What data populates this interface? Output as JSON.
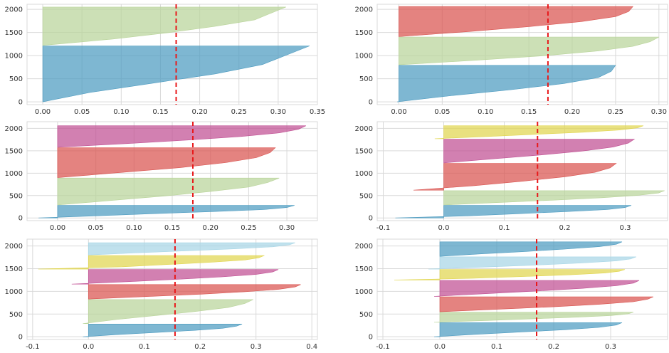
{
  "colors": {
    "c_blue": "#4c9bc0",
    "c_green": "#b9d49a",
    "c_red": "#d9534f",
    "c_purple": "#c04f93",
    "c_yellow": "#e1d64f",
    "c_cyan": "#a7d6e6",
    "avg_line": "#e8191b",
    "grid": "#d9d9d9",
    "plot_bg": "#ffffff"
  },
  "chart_data": [
    {
      "type": "silhouette",
      "n_clusters": 2,
      "average_score": 0.17,
      "xlim": [
        -0.02,
        0.35
      ],
      "ylim": [
        -60,
        2110
      ],
      "x_ticks": [
        0.0,
        0.05,
        0.1,
        0.15,
        0.2,
        0.25,
        0.3,
        0.35
      ],
      "x_tick_labels": [
        "0.00",
        "0.05",
        "0.10",
        "0.15",
        "0.20",
        "0.25",
        "0.30",
        "0.35"
      ],
      "y_ticks": [
        0,
        500,
        1000,
        1500,
        2000
      ],
      "y_tick_labels": [
        "0",
        "500",
        "1000",
        "1500",
        "2000"
      ],
      "clusters": [
        {
          "y_start": 0,
          "y_end": 1210,
          "profile": [
            0.0,
            0.06,
            0.14,
            0.22,
            0.28,
            0.31,
            0.34
          ],
          "color": "c_blue"
        },
        {
          "y_start": 1220,
          "y_end": 2050,
          "profile": [
            0.0,
            0.09,
            0.16,
            0.22,
            0.27,
            0.29,
            0.31
          ],
          "color": "c_green"
        }
      ]
    },
    {
      "type": "silhouette",
      "n_clusters": 3,
      "average_score": 0.172,
      "xlim": [
        -0.025,
        0.31
      ],
      "ylim": [
        -60,
        2110
      ],
      "x_ticks": [
        0.0,
        0.05,
        0.1,
        0.15,
        0.2,
        0.25,
        0.3
      ],
      "x_tick_labels": [
        "0.00",
        "0.05",
        "0.10",
        "0.15",
        "0.20",
        "0.25",
        "0.30"
      ],
      "y_ticks": [
        0,
        500,
        1000,
        1500,
        2000
      ],
      "y_tick_labels": [
        "0",
        "500",
        "1000",
        "1500",
        "2000"
      ],
      "clusters": [
        {
          "y_start": 0,
          "y_end": 790,
          "profile": [
            -0.002,
            0.06,
            0.13,
            0.19,
            0.23,
            0.245,
            0.25
          ],
          "color": "c_blue"
        },
        {
          "y_start": 800,
          "y_end": 1400,
          "profile": [
            0.0,
            0.09,
            0.17,
            0.23,
            0.27,
            0.29,
            0.3
          ],
          "color": "c_green"
        },
        {
          "y_start": 1410,
          "y_end": 2060,
          "profile": [
            0.0,
            0.08,
            0.15,
            0.21,
            0.25,
            0.265,
            0.27
          ],
          "color": "c_red"
        }
      ]
    },
    {
      "type": "silhouette",
      "n_clusters": 4,
      "average_score": 0.177,
      "xlim": [
        -0.04,
        0.34
      ],
      "ylim": [
        -60,
        2150
      ],
      "x_ticks": [
        0.0,
        0.05,
        0.1,
        0.15,
        0.2,
        0.25,
        0.3
      ],
      "x_tick_labels": [
        "0.00",
        "0.05",
        "0.10",
        "0.15",
        "0.20",
        "0.25",
        "0.30"
      ],
      "y_ticks": [
        0,
        500,
        1000,
        1500,
        2000
      ],
      "y_tick_labels": [
        "0",
        "500",
        "1000",
        "1500",
        "2000"
      ],
      "clusters": [
        {
          "y_start": 0,
          "y_end": 280,
          "profile": [
            -0.025,
            0.05,
            0.12,
            0.2,
            0.27,
            0.3,
            0.31
          ],
          "color": "c_blue"
        },
        {
          "y_start": 290,
          "y_end": 890,
          "profile": [
            0.0,
            0.07,
            0.14,
            0.2,
            0.25,
            0.275,
            0.29
          ],
          "color": "c_green"
        },
        {
          "y_start": 900,
          "y_end": 1570,
          "profile": [
            0.0,
            0.08,
            0.16,
            0.22,
            0.26,
            0.278,
            0.285
          ],
          "color": "c_red"
        },
        {
          "y_start": 1580,
          "y_end": 2060,
          "profile": [
            0.0,
            0.09,
            0.17,
            0.24,
            0.29,
            0.315,
            0.325
          ],
          "color": "c_purple"
        }
      ]
    },
    {
      "type": "silhouette",
      "n_clusters": 5,
      "average_score": 0.155,
      "xlim": [
        -0.11,
        0.37
      ],
      "ylim": [
        -60,
        2150
      ],
      "x_ticks": [
        -0.1,
        0.0,
        0.1,
        0.2,
        0.3
      ],
      "x_tick_labels": [
        "-0.1",
        "0.0",
        "0.1",
        "0.2",
        "0.3"
      ],
      "y_ticks": [
        0,
        500,
        1000,
        1500,
        2000
      ],
      "y_tick_labels": [
        "0",
        "500",
        "1000",
        "1500",
        "2000"
      ],
      "clusters": [
        {
          "y_start": 0,
          "y_end": 280,
          "profile": [
            -0.08,
            0.04,
            0.12,
            0.2,
            0.27,
            0.3,
            0.31
          ],
          "color": "c_blue"
        },
        {
          "y_start": 290,
          "y_end": 610,
          "profile": [
            0.0,
            0.09,
            0.18,
            0.26,
            0.32,
            0.355,
            0.365
          ],
          "color": "c_green"
        },
        {
          "y_start": 620,
          "y_end": 1220,
          "profile": [
            -0.05,
            0.05,
            0.13,
            0.2,
            0.25,
            0.275,
            0.285
          ],
          "color": "c_red"
        },
        {
          "y_start": 1230,
          "y_end": 1760,
          "profile": [
            0.0,
            0.08,
            0.16,
            0.23,
            0.28,
            0.305,
            0.315
          ],
          "color": "c_purple"
        },
        {
          "y_start": 1770,
          "y_end": 2060,
          "profile": [
            -0.015,
            0.07,
            0.15,
            0.23,
            0.29,
            0.32,
            0.33
          ],
          "color": "c_yellow"
        }
      ]
    },
    {
      "type": "silhouette",
      "n_clusters": 6,
      "average_score": 0.155,
      "xlim": [
        -0.11,
        0.41
      ],
      "ylim": [
        -60,
        2150
      ],
      "x_ticks": [
        -0.1,
        0.0,
        0.1,
        0.2,
        0.3,
        0.4
      ],
      "x_tick_labels": [
        "-0.1",
        "0.0",
        "0.1",
        "0.2",
        "0.3",
        "0.4"
      ],
      "y_ticks": [
        0,
        500,
        1000,
        1500,
        2000
      ],
      "y_tick_labels": [
        "0",
        "500",
        "1000",
        "1500",
        "2000"
      ],
      "clusters": [
        {
          "y_start": 0,
          "y_end": 280,
          "profile": [
            -0.01,
            0.05,
            0.12,
            0.19,
            0.24,
            0.265,
            0.275
          ],
          "color": "c_blue"
        },
        {
          "y_start": 290,
          "y_end": 820,
          "profile": [
            -0.01,
            0.05,
            0.12,
            0.19,
            0.25,
            0.28,
            0.295
          ],
          "color": "c_green"
        },
        {
          "y_start": 830,
          "y_end": 1150,
          "profile": [
            0.0,
            0.1,
            0.2,
            0.28,
            0.34,
            0.37,
            0.38
          ],
          "color": "c_red"
        },
        {
          "y_start": 1160,
          "y_end": 1480,
          "profile": [
            -0.03,
            0.07,
            0.16,
            0.24,
            0.3,
            0.33,
            0.34
          ],
          "color": "c_purple"
        },
        {
          "y_start": 1490,
          "y_end": 1790,
          "profile": [
            -0.09,
            0.06,
            0.14,
            0.22,
            0.28,
            0.305,
            0.315
          ],
          "color": "c_yellow"
        },
        {
          "y_start": 1800,
          "y_end": 2070,
          "profile": [
            0.0,
            0.08,
            0.17,
            0.26,
            0.33,
            0.36,
            0.37
          ],
          "color": "c_cyan"
        }
      ]
    },
    {
      "type": "silhouette",
      "n_clusters": 7,
      "average_score": 0.17,
      "xlim": [
        -0.11,
        0.4
      ],
      "ylim": [
        -60,
        2150
      ],
      "x_ticks": [
        -0.1,
        0.0,
        0.1,
        0.2,
        0.3
      ],
      "x_tick_labels": [
        "-0.1",
        "0.0",
        "0.1",
        "0.2",
        "0.3"
      ],
      "y_ticks": [
        0,
        500,
        1000,
        1500,
        2000
      ],
      "y_tick_labels": [
        "0",
        "500",
        "1000",
        "1500",
        "2000"
      ],
      "clusters": [
        {
          "y_start": 0,
          "y_end": 310,
          "profile": [
            -0.01,
            0.06,
            0.14,
            0.22,
            0.28,
            0.31,
            0.32
          ],
          "color": "c_blue"
        },
        {
          "y_start": 320,
          "y_end": 540,
          "profile": [
            -0.01,
            0.08,
            0.16,
            0.24,
            0.3,
            0.33,
            0.34
          ],
          "color": "c_green"
        },
        {
          "y_start": 550,
          "y_end": 880,
          "profile": [
            0.0,
            0.1,
            0.2,
            0.28,
            0.34,
            0.365,
            0.375
          ],
          "color": "c_red"
        },
        {
          "y_start": 890,
          "y_end": 1240,
          "profile": [
            -0.01,
            0.08,
            0.17,
            0.25,
            0.31,
            0.34,
            0.35
          ],
          "color": "c_purple"
        },
        {
          "y_start": 1250,
          "y_end": 1480,
          "profile": [
            -0.08,
            0.06,
            0.15,
            0.23,
            0.29,
            0.315,
            0.325
          ],
          "color": "c_yellow"
        },
        {
          "y_start": 1490,
          "y_end": 1760,
          "profile": [
            -0.02,
            0.08,
            0.17,
            0.25,
            0.31,
            0.335,
            0.345
          ],
          "color": "c_cyan"
        },
        {
          "y_start": 1770,
          "y_end": 2090,
          "profile": [
            0.0,
            0.07,
            0.15,
            0.22,
            0.28,
            0.31,
            0.32
          ],
          "color": "c_blue"
        }
      ]
    }
  ]
}
